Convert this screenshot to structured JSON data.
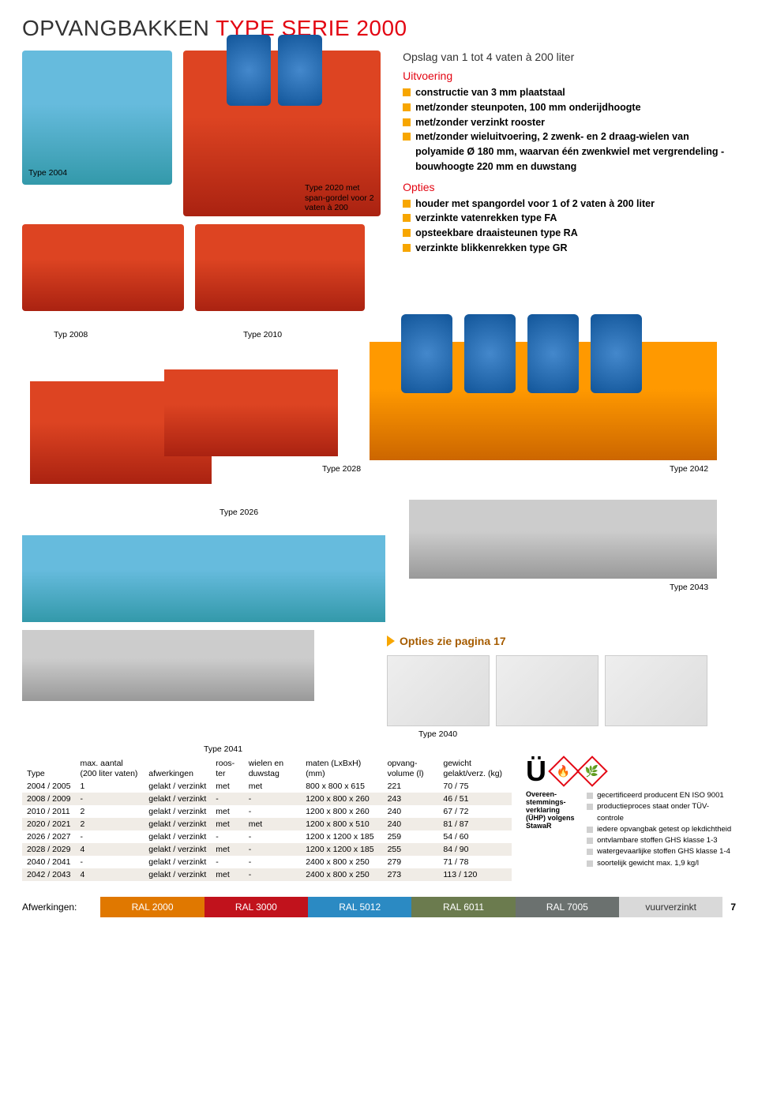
{
  "title_dark": "OPVANGBAKKEN ",
  "title_red": "TYPE SERIE 2000",
  "subheading": "Opslag van 1 tot 4 vaten à 200 liter",
  "uitvoering_heading": "Uitvoering",
  "uitvoering_items": [
    "constructie van 3 mm plaatstaal",
    "met/zonder steunpoten, 100 mm onderijdhoogte",
    "met/zonder verzinkt rooster",
    "met/zonder wieluitvoering, 2 zwenk- en 2 draag-wielen van polyamide Ø 180 mm, waarvan één zwenkwiel met vergrendeling - bouwhoogte 220 mm en duwstang"
  ],
  "opties_heading": "Opties",
  "opties_items": [
    "houder met spangordel voor 1 of 2 vaten à 200 liter",
    "verzinkte vatenrekken type FA",
    "opsteekbare draaisteunen type RA",
    "verzinkte blikkenrekken type GR"
  ],
  "opties_link": "Opties zie pagina 17",
  "captions": {
    "type2004": "Type 2004",
    "type2020": "Type 2020 met span-gordel voor 2 vaten à 200",
    "typ2008": "Typ 2008",
    "type2010": "Type 2010",
    "type2028": "Type 2028",
    "type2042": "Type 2042",
    "type2026": "Type 2026",
    "type2043": "Type 2043",
    "type2040": "Type 2040",
    "type2041": "Type 2041"
  },
  "table": {
    "headers": [
      "Type",
      "max. aantal (200 liter vaten)",
      "afwerkingen",
      "roos-ter",
      "wielen en duwstag",
      "maten (LxBxH) (mm)",
      "opvang-volume (l)",
      "gewicht gelakt/verz. (kg)"
    ],
    "rows": [
      [
        "2004 / 2005",
        "1",
        "gelakt / verzinkt",
        "met",
        "met",
        "800 x   800 x 615",
        "221",
        "70 / 75"
      ],
      [
        "2008 / 2009",
        "-",
        "gelakt / verzinkt",
        "-",
        "-",
        "1200 x   800 x 260",
        "243",
        "46 / 51"
      ],
      [
        "2010 / 2011",
        "2",
        "gelakt / verzinkt",
        "met",
        "-",
        "1200 x   800 x 260",
        "240",
        "67 / 72"
      ],
      [
        "2020 / 2021",
        "2",
        "gelakt / verzinkt",
        "met",
        "met",
        "1200 x   800 x 510",
        "240",
        "81 / 87"
      ],
      [
        "2026 / 2027",
        "-",
        "gelakt / verzinkt",
        "-",
        "-",
        "1200 x 1200 x 185",
        "259",
        "54 / 60"
      ],
      [
        "2028 / 2029",
        "4",
        "gelakt / verzinkt",
        "met",
        "-",
        "1200 x 1200 x 185",
        "255",
        "84 / 90"
      ],
      [
        "2040 / 2041",
        "-",
        "gelakt / verzinkt",
        "-",
        "-",
        "2400 x   800 x 250",
        "279",
        "71 / 78"
      ],
      [
        "2042 / 2043",
        "4",
        "gelakt / verzinkt",
        "met",
        "-",
        "2400 x   800 x 250",
        "273",
        "113 / 120"
      ]
    ]
  },
  "cert": {
    "overeen_label": "Overeen-stemmings-verklaring (ÜHP) volgens StawaR",
    "items": [
      "gecertificeerd producent EN ISO 9001",
      "productieproces staat onder TÜV- controle",
      "iedere opvangbak getest op lekdichtheid",
      "ontvlambare stoffen GHS klasse 1-3",
      "watergevaarlijke stoffen GHS klasse 1-4",
      "soortelijk gewicht max. 1,9 kg/l"
    ]
  },
  "footer": {
    "label": "Afwerkingen:",
    "swatches": [
      {
        "label": "RAL 2000",
        "color": "#e07800"
      },
      {
        "label": "RAL 3000",
        "color": "#c1121c"
      },
      {
        "label": "RAL 5012",
        "color": "#2b8ac3"
      },
      {
        "label": "RAL 6011",
        "color": "#6b7b4e"
      },
      {
        "label": "RAL 7005",
        "color": "#6b716f"
      },
      {
        "label": "vuurverzinkt",
        "color": "#d9d9d9"
      }
    ],
    "page_number": "7"
  },
  "colors": {
    "accent_red": "#e30613",
    "accent_orange": "#f7a600"
  }
}
